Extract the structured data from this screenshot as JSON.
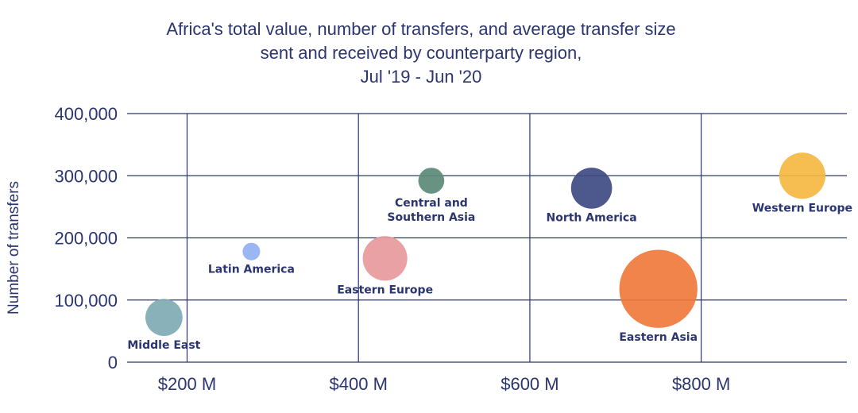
{
  "chart_data": {
    "type": "scatter",
    "title_lines": [
      "Africa's total value, number of transfers, and average transfer size",
      "sent and received by counterparty region,",
      "Jul '19 - Jun '20"
    ],
    "xlabel": "",
    "ylabel": "Number of transfers",
    "xlim": [
      130,
      970
    ],
    "ylim": [
      0,
      400000
    ],
    "x_ticks": [
      {
        "value": 200,
        "label": "$200 M"
      },
      {
        "value": 400,
        "label": "$400 M"
      },
      {
        "value": 600,
        "label": "$600 M"
      },
      {
        "value": 800,
        "label": "$800 M"
      }
    ],
    "y_ticks": [
      {
        "value": 0,
        "label": "0"
      },
      {
        "value": 100000,
        "label": "100,000"
      },
      {
        "value": 200000,
        "label": "200,000"
      },
      {
        "value": 300000,
        "label": "300,000"
      },
      {
        "value": 400000,
        "label": "400,000"
      }
    ],
    "grid": true,
    "points": [
      {
        "label_lines": [
          "Middle East"
        ],
        "x": 173,
        "y": 72000,
        "size": 4.5,
        "color": "#7faab3"
      },
      {
        "label_lines": [
          "Latin America"
        ],
        "x": 275,
        "y": 178000,
        "size": 1,
        "color": "#8fb1f2"
      },
      {
        "label_lines": [
          "Eastern Europe"
        ],
        "x": 431,
        "y": 167000,
        "size": 6.5,
        "color": "#e8999c"
      },
      {
        "label_lines": [
          "Central and",
          "Southern Asia"
        ],
        "x": 485,
        "y": 292000,
        "size": 2.2,
        "color": "#5b8a78"
      },
      {
        "label_lines": [
          "North America"
        ],
        "x": 672,
        "y": 280000,
        "size": 5.5,
        "color": "#3e4a82"
      },
      {
        "label_lines": [
          "Eastern Asia"
        ],
        "x": 750,
        "y": 118000,
        "size": 20,
        "color": "#f07a3c"
      },
      {
        "label_lines": [
          "Western Europe"
        ],
        "x": 918,
        "y": 300000,
        "size": 7,
        "color": "#f5b941"
      }
    ]
  }
}
